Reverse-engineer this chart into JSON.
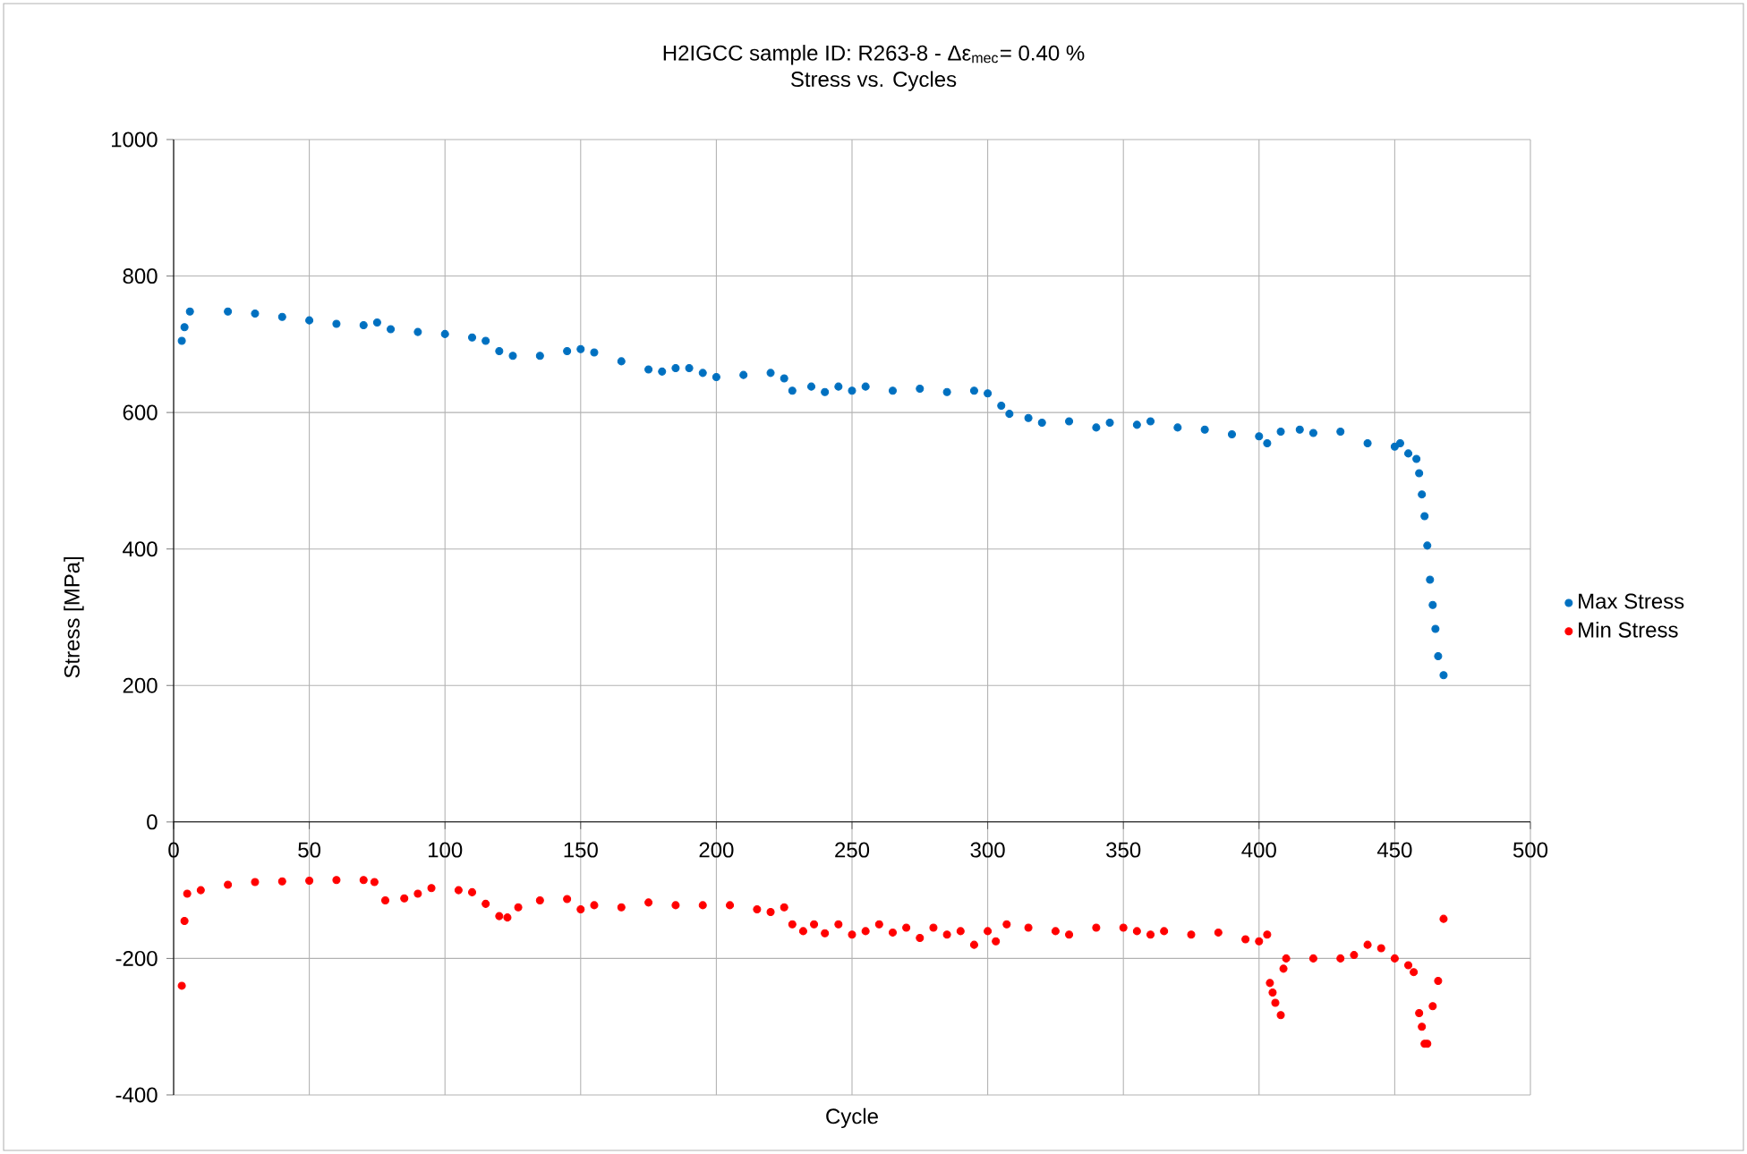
{
  "chart_data": {
    "type": "scatter",
    "title": "H2IGCC sample ID: R263-8 - Δε$_{mec}$= 0.40 %",
    "subtitle": "Stress vs. Cycles",
    "xlabel": "Cycle",
    "ylabel": "Stress [MPa]",
    "xlim": [
      0,
      500
    ],
    "xticks": [
      0,
      50,
      100,
      150,
      200,
      250,
      300,
      350,
      400,
      450,
      500
    ],
    "ylim": [
      -400,
      1000
    ],
    "yticks": [
      -400,
      -200,
      0,
      200,
      400,
      600,
      800,
      1000
    ],
    "grid": true,
    "legend": "right",
    "marker": "circle",
    "series": [
      {
        "name": "Max Stress",
        "color": "#0070c0",
        "x": [
          3,
          4,
          6,
          20,
          30,
          40,
          50,
          60,
          70,
          75,
          80,
          90,
          100,
          110,
          115,
          120,
          125,
          135,
          145,
          150,
          155,
          165,
          175,
          180,
          185,
          190,
          195,
          200,
          210,
          220,
          225,
          228,
          235,
          240,
          245,
          250,
          255,
          265,
          275,
          285,
          295,
          300,
          305,
          308,
          315,
          320,
          330,
          340,
          345,
          355,
          360,
          370,
          380,
          390,
          400,
          403,
          408,
          415,
          420,
          430,
          440,
          450,
          452,
          455,
          458,
          459,
          460,
          461,
          462,
          463,
          464,
          465,
          466,
          468
        ],
        "values": [
          705,
          725,
          748,
          748,
          745,
          740,
          735,
          730,
          728,
          732,
          722,
          718,
          715,
          710,
          705,
          690,
          683,
          683,
          690,
          693,
          688,
          675,
          663,
          660,
          665,
          665,
          658,
          652,
          655,
          658,
          650,
          632,
          638,
          630,
          638,
          632,
          638,
          632,
          635,
          630,
          632,
          628,
          610,
          598,
          592,
          585,
          587,
          578,
          585,
          582,
          587,
          578,
          575,
          568,
          565,
          555,
          572,
          575,
          570,
          572,
          555,
          550,
          555,
          540,
          532,
          511,
          480,
          448,
          405,
          355,
          318,
          283,
          243,
          215
        ]
      },
      {
        "name": "Min Stress",
        "color": "#ff0000",
        "x": [
          3,
          4,
          5,
          10,
          20,
          30,
          40,
          50,
          60,
          70,
          74,
          78,
          85,
          90,
          95,
          105,
          110,
          115,
          120,
          123,
          127,
          135,
          145,
          150,
          155,
          165,
          175,
          185,
          195,
          205,
          215,
          220,
          225,
          228,
          232,
          236,
          240,
          245,
          250,
          255,
          260,
          265,
          270,
          275,
          280,
          285,
          290,
          295,
          300,
          303,
          307,
          315,
          325,
          330,
          340,
          350,
          355,
          360,
          365,
          375,
          385,
          395,
          400,
          403,
          404,
          405,
          406,
          408,
          409,
          410,
          420,
          430,
          435,
          440,
          445,
          450,
          455,
          457,
          459,
          460,
          461,
          462,
          464,
          466,
          468
        ],
        "values": [
          -240,
          -145,
          -105,
          -100,
          -92,
          -88,
          -87,
          -86,
          -85,
          -85,
          -88,
          -115,
          -112,
          -105,
          -97,
          -100,
          -103,
          -120,
          -138,
          -140,
          -125,
          -115,
          -113,
          -128,
          -122,
          -125,
          -118,
          -122,
          -122,
          -122,
          -128,
          -132,
          -125,
          -150,
          -160,
          -150,
          -163,
          -150,
          -165,
          -160,
          -150,
          -162,
          -155,
          -170,
          -155,
          -165,
          -160,
          -180,
          -160,
          -175,
          -150,
          -155,
          -160,
          -165,
          -155,
          -155,
          -160,
          -165,
          -160,
          -165,
          -162,
          -172,
          -175,
          -165,
          -236,
          -250,
          -265,
          -283,
          -215,
          -200,
          -200,
          -200,
          -195,
          -180,
          -185,
          -200,
          -210,
          -220,
          -280,
          -300,
          -325,
          -325,
          -270,
          -233,
          -142
        ]
      }
    ]
  }
}
